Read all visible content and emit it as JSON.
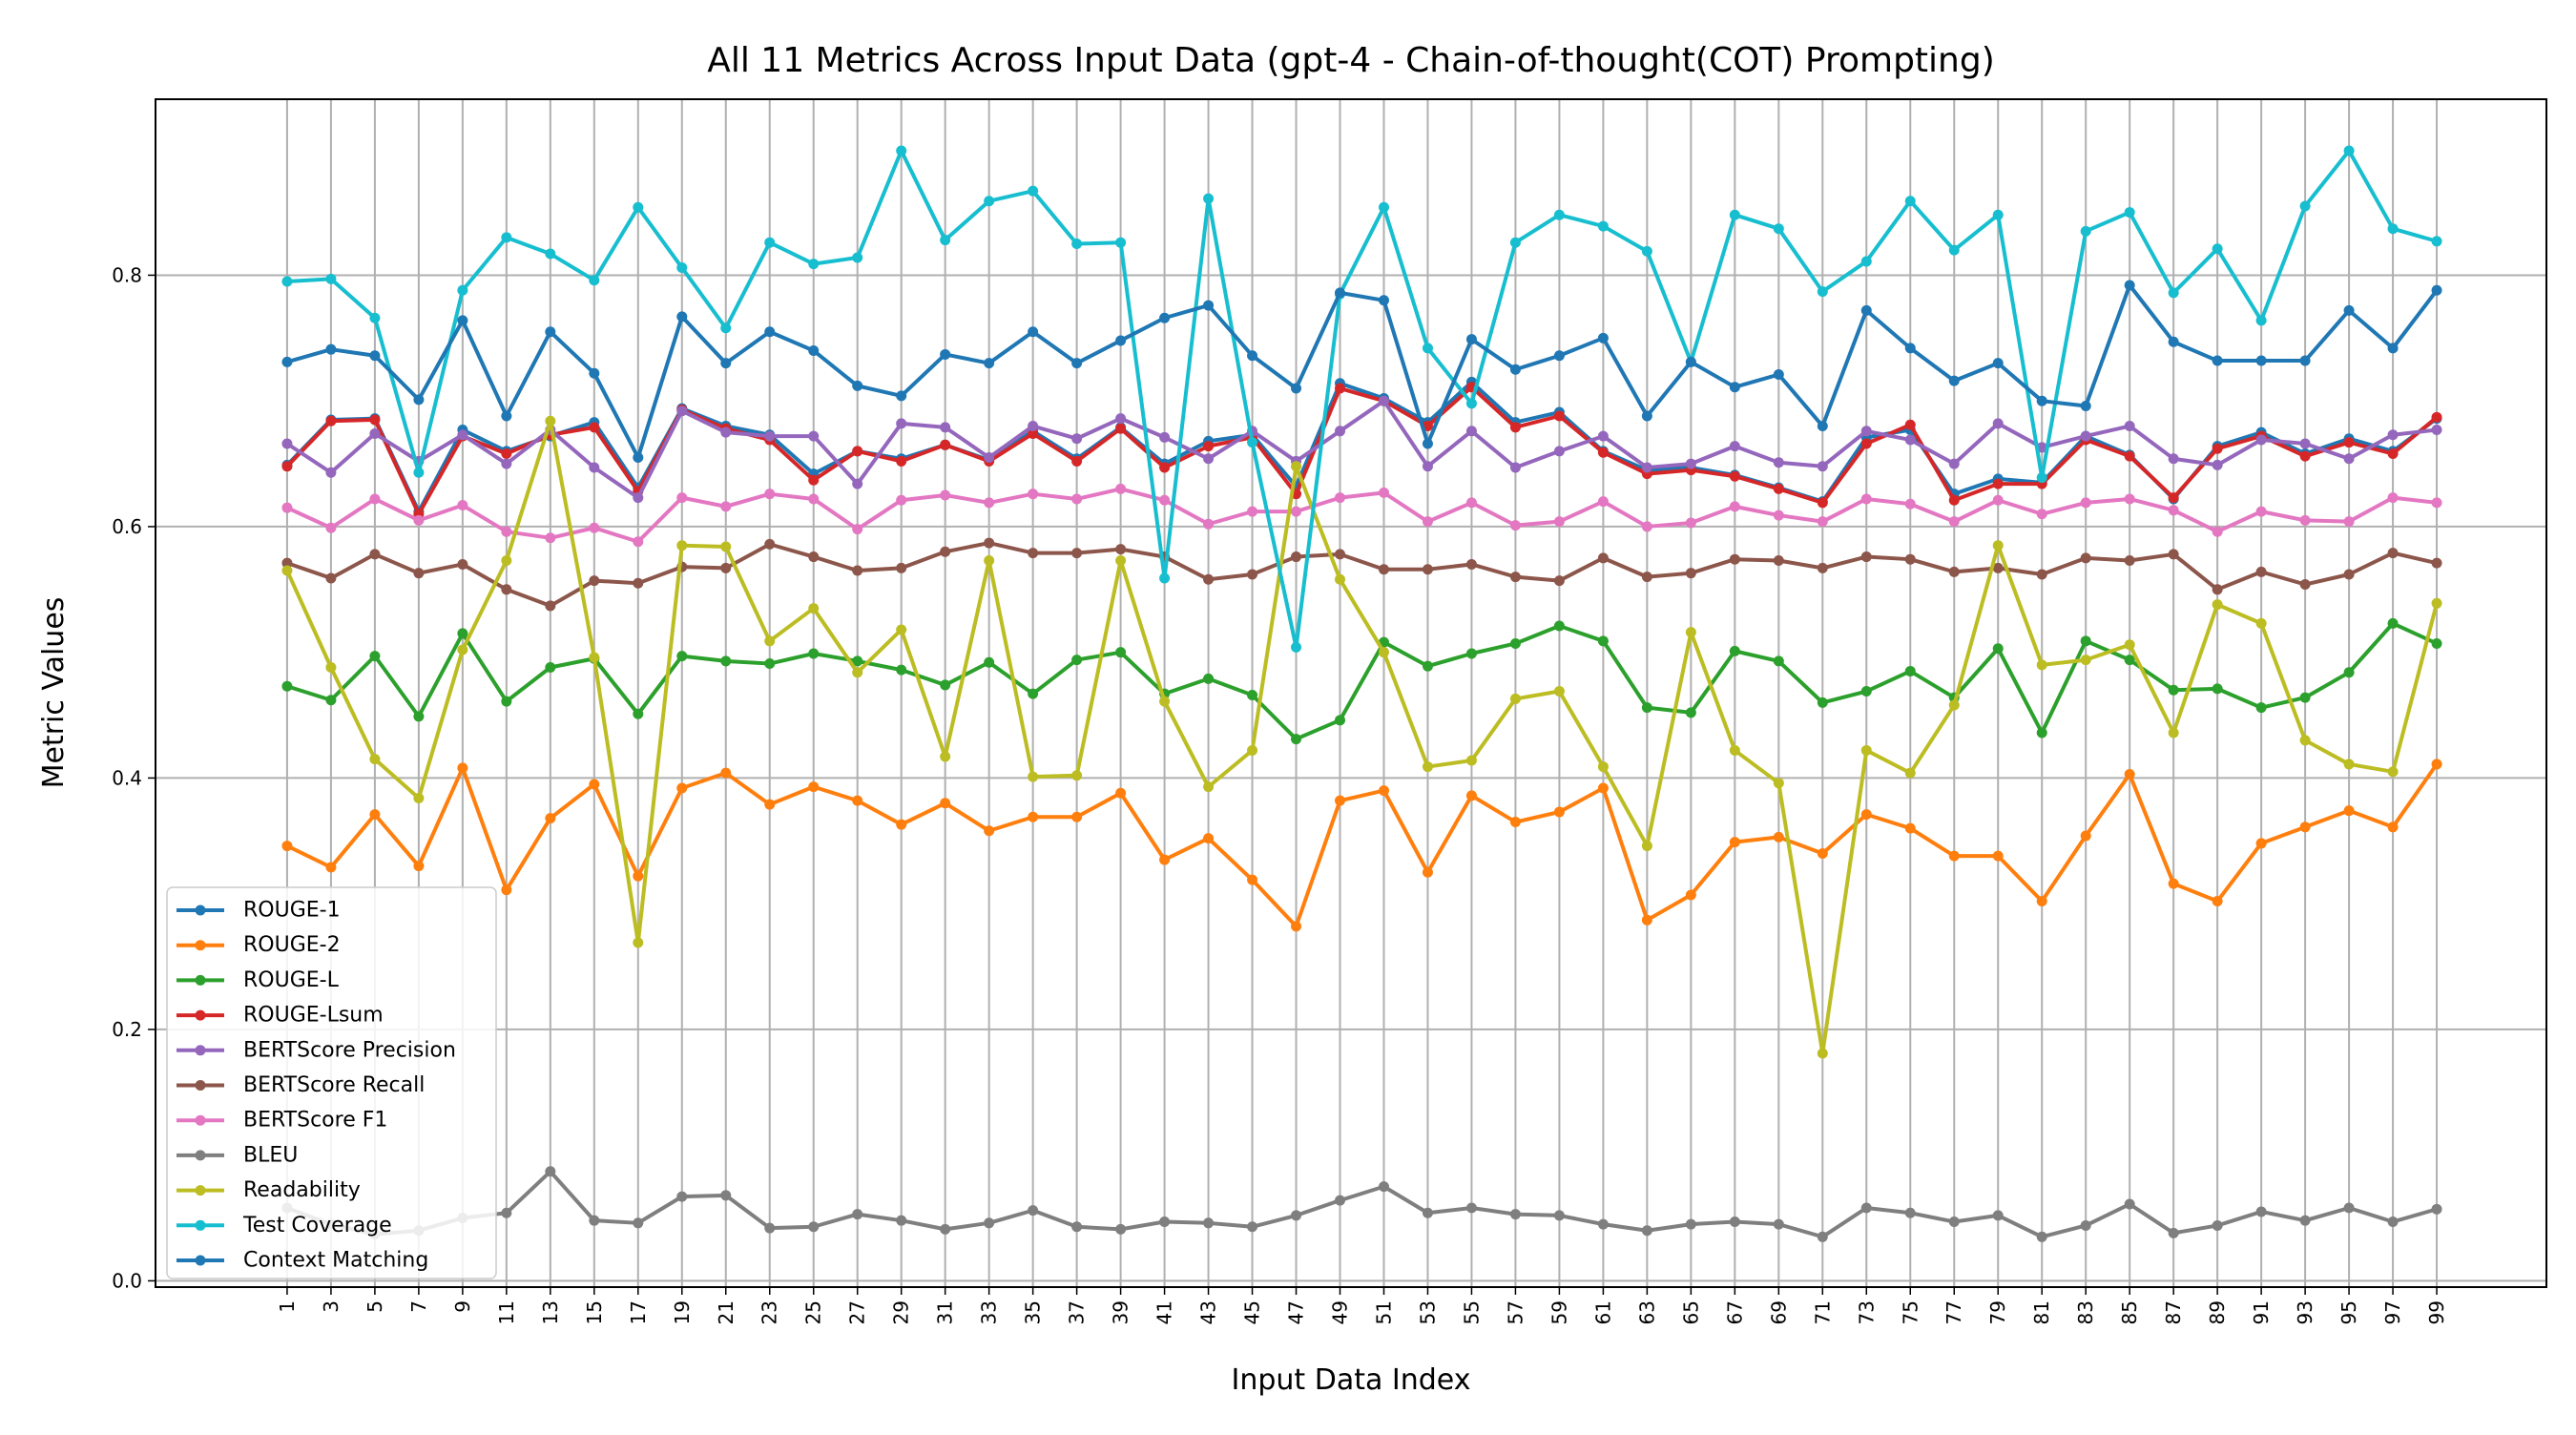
{
  "chart_data": {
    "type": "line",
    "title": "All 11 Metrics Across Input Data (gpt-4 - Chain-of-thought(COT) Prompting)",
    "xlabel": "Input Data Index",
    "ylabel": "Metric Values",
    "ylim": [
      -0.005,
      0.94
    ],
    "xlim": [
      -5,
      104
    ],
    "grid": true,
    "legend_position": "lower-left",
    "x": [
      1,
      3,
      5,
      7,
      9,
      11,
      13,
      15,
      17,
      19,
      21,
      23,
      25,
      27,
      29,
      31,
      33,
      35,
      37,
      39,
      41,
      43,
      45,
      47,
      49,
      51,
      53,
      55,
      57,
      59,
      61,
      63,
      65,
      67,
      69,
      71,
      73,
      75,
      77,
      79,
      81,
      83,
      85,
      87,
      89,
      91,
      93,
      95,
      97,
      99
    ],
    "y_ticks": [
      0.0,
      0.2,
      0.4,
      0.6,
      0.8
    ],
    "y_tick_labels": [
      "0.0",
      "0.2",
      "0.4",
      "0.6",
      "0.8"
    ],
    "series": [
      {
        "name": "ROUGE-1",
        "color": "#1f77b4",
        "values": [
          0.649,
          0.685,
          0.686,
          0.612,
          0.677,
          0.66,
          0.672,
          0.683,
          0.631,
          0.694,
          0.68,
          0.673,
          0.642,
          0.66,
          0.654,
          0.665,
          0.653,
          0.676,
          0.654,
          0.679,
          0.65,
          0.668,
          0.673,
          0.632,
          0.714,
          0.702,
          0.683,
          0.715,
          0.683,
          0.691,
          0.66,
          0.645,
          0.647,
          0.641,
          0.631,
          0.62,
          0.671,
          0.677,
          0.626,
          0.638,
          0.635,
          0.672,
          0.657,
          0.622,
          0.664,
          0.675,
          0.658,
          0.67,
          0.66,
          0.686
        ]
      },
      {
        "name": "ROUGE-2",
        "color": "#ff7f0e",
        "values": [
          0.346,
          0.329,
          0.371,
          0.33,
          0.408,
          0.311,
          0.368,
          0.395,
          0.322,
          0.392,
          0.404,
          0.379,
          0.393,
          0.382,
          0.363,
          0.38,
          0.358,
          0.369,
          0.369,
          0.388,
          0.335,
          0.352,
          0.319,
          0.282,
          0.382,
          0.39,
          0.325,
          0.386,
          0.365,
          0.373,
          0.392,
          0.287,
          0.307,
          0.349,
          0.353,
          0.34,
          0.371,
          0.36,
          0.338,
          0.338,
          0.302,
          0.354,
          0.403,
          0.316,
          0.302,
          0.348,
          0.361,
          0.374,
          0.361,
          0.411
        ]
      },
      {
        "name": "ROUGE-L",
        "color": "#2ca02c",
        "values": [
          0.473,
          0.462,
          0.497,
          0.449,
          0.515,
          0.461,
          0.488,
          0.495,
          0.451,
          0.497,
          0.493,
          0.491,
          0.499,
          0.493,
          0.486,
          0.474,
          0.492,
          0.467,
          0.494,
          0.5,
          0.467,
          0.479,
          0.466,
          0.431,
          0.446,
          0.508,
          0.489,
          0.499,
          0.507,
          0.521,
          0.509,
          0.456,
          0.452,
          0.501,
          0.493,
          0.46,
          0.469,
          0.485,
          0.464,
          0.503,
          0.436,
          0.509,
          0.494,
          0.47,
          0.471,
          0.456,
          0.464,
          0.484,
          0.523,
          0.507
        ]
      },
      {
        "name": "ROUGE-Lsum",
        "color": "#d62728",
        "values": [
          0.648,
          0.684,
          0.685,
          0.61,
          0.672,
          0.658,
          0.673,
          0.679,
          0.628,
          0.693,
          0.678,
          0.669,
          0.637,
          0.66,
          0.652,
          0.665,
          0.652,
          0.674,
          0.652,
          0.678,
          0.647,
          0.664,
          0.671,
          0.626,
          0.71,
          0.7,
          0.68,
          0.711,
          0.679,
          0.688,
          0.659,
          0.642,
          0.645,
          0.64,
          0.63,
          0.619,
          0.666,
          0.681,
          0.621,
          0.634,
          0.634,
          0.669,
          0.656,
          0.623,
          0.662,
          0.672,
          0.656,
          0.667,
          0.658,
          0.687
        ]
      },
      {
        "name": "BERTScore Precision",
        "color": "#9467bd",
        "values": [
          0.666,
          0.643,
          0.674,
          0.652,
          0.673,
          0.65,
          0.677,
          0.647,
          0.623,
          0.692,
          0.675,
          0.672,
          0.672,
          0.634,
          0.682,
          0.679,
          0.655,
          0.68,
          0.67,
          0.686,
          0.671,
          0.654,
          0.676,
          0.652,
          0.676,
          0.7,
          0.648,
          0.676,
          0.647,
          0.66,
          0.672,
          0.647,
          0.65,
          0.664,
          0.651,
          0.648,
          0.676,
          0.669,
          0.65,
          0.682,
          0.663,
          0.672,
          0.68,
          0.654,
          0.649,
          0.669,
          0.666,
          0.654,
          0.673,
          0.677
        ]
      },
      {
        "name": "BERTScore Recall",
        "color": "#8c564b",
        "values": [
          0.571,
          0.559,
          0.578,
          0.563,
          0.57,
          0.55,
          0.537,
          0.557,
          0.555,
          0.568,
          0.567,
          0.586,
          0.576,
          0.565,
          0.567,
          0.58,
          0.587,
          0.579,
          0.579,
          0.582,
          0.576,
          0.558,
          0.562,
          0.576,
          0.578,
          0.566,
          0.566,
          0.57,
          0.56,
          0.557,
          0.575,
          0.56,
          0.563,
          0.574,
          0.573,
          0.567,
          0.576,
          0.574,
          0.564,
          0.567,
          0.562,
          0.575,
          0.573,
          0.578,
          0.55,
          0.564,
          0.554,
          0.562,
          0.579,
          0.571
        ]
      },
      {
        "name": "BERTScore F1",
        "color": "#e377c2",
        "values": [
          0.615,
          0.599,
          0.622,
          0.605,
          0.617,
          0.596,
          0.591,
          0.599,
          0.588,
          0.623,
          0.616,
          0.626,
          0.622,
          0.598,
          0.621,
          0.625,
          0.619,
          0.626,
          0.622,
          0.63,
          0.621,
          0.602,
          0.612,
          0.612,
          0.623,
          0.627,
          0.604,
          0.619,
          0.601,
          0.604,
          0.62,
          0.6,
          0.603,
          0.616,
          0.609,
          0.604,
          0.622,
          0.618,
          0.604,
          0.621,
          0.61,
          0.619,
          0.622,
          0.613,
          0.596,
          0.612,
          0.605,
          0.604,
          0.623,
          0.619
        ]
      },
      {
        "name": "BLEU",
        "color": "#7f7f7f",
        "values": [
          0.058,
          0.045,
          0.037,
          0.04,
          0.05,
          0.054,
          0.087,
          0.048,
          0.046,
          0.067,
          0.068,
          0.042,
          0.043,
          0.053,
          0.048,
          0.041,
          0.046,
          0.056,
          0.043,
          0.041,
          0.047,
          0.046,
          0.043,
          0.052,
          0.064,
          0.075,
          0.054,
          0.058,
          0.053,
          0.052,
          0.045,
          0.04,
          0.045,
          0.047,
          0.045,
          0.035,
          0.058,
          0.054,
          0.047,
          0.052,
          0.035,
          0.044,
          0.061,
          0.038,
          0.044,
          0.055,
          0.048,
          0.058,
          0.047,
          0.057
        ]
      },
      {
        "name": "Readability",
        "color": "#bcbd22",
        "values": [
          0.565,
          0.488,
          0.415,
          0.384,
          0.502,
          0.573,
          0.684,
          0.496,
          0.269,
          0.585,
          0.584,
          0.509,
          0.535,
          0.484,
          0.518,
          0.417,
          0.573,
          0.401,
          0.402,
          0.573,
          0.461,
          0.393,
          0.422,
          0.648,
          0.558,
          0.5,
          0.409,
          0.414,
          0.463,
          0.469,
          0.409,
          0.346,
          0.516,
          0.422,
          0.396,
          0.181,
          0.422,
          0.404,
          0.458,
          0.585,
          0.49,
          0.494,
          0.506,
          0.436,
          0.538,
          0.523,
          0.43,
          0.411,
          0.405,
          0.539
        ]
      },
      {
        "name": "Test Coverage",
        "color": "#17becf",
        "values": [
          0.795,
          0.797,
          0.766,
          0.643,
          0.788,
          0.83,
          0.817,
          0.796,
          0.854,
          0.806,
          0.758,
          0.826,
          0.809,
          0.814,
          0.899,
          0.828,
          0.859,
          0.867,
          0.825,
          0.826,
          0.559,
          0.861,
          0.667,
          0.504,
          0.785,
          0.854,
          0.742,
          0.698,
          0.826,
          0.848,
          0.839,
          0.819,
          0.731,
          0.848,
          0.837,
          0.787,
          0.811,
          0.859,
          0.82,
          0.848,
          0.639,
          0.835,
          0.85,
          0.786,
          0.821,
          0.764,
          0.855,
          0.899,
          0.837,
          0.827
        ]
      },
      {
        "name": "Context Matching",
        "color": "#1f77b4",
        "values": [
          0.731,
          0.741,
          0.736,
          0.701,
          0.764,
          0.688,
          0.755,
          0.722,
          0.655,
          0.767,
          0.73,
          0.755,
          0.74,
          0.712,
          0.704,
          0.737,
          0.73,
          0.755,
          0.73,
          0.748,
          0.766,
          0.776,
          0.736,
          0.71,
          0.786,
          0.78,
          0.666,
          0.749,
          0.725,
          0.736,
          0.75,
          0.688,
          0.731,
          0.711,
          0.721,
          0.68,
          0.772,
          0.742,
          0.716,
          0.73,
          0.7,
          0.696,
          0.792,
          0.747,
          0.732,
          0.732,
          0.732,
          0.772,
          0.742,
          0.788
        ]
      }
    ]
  }
}
